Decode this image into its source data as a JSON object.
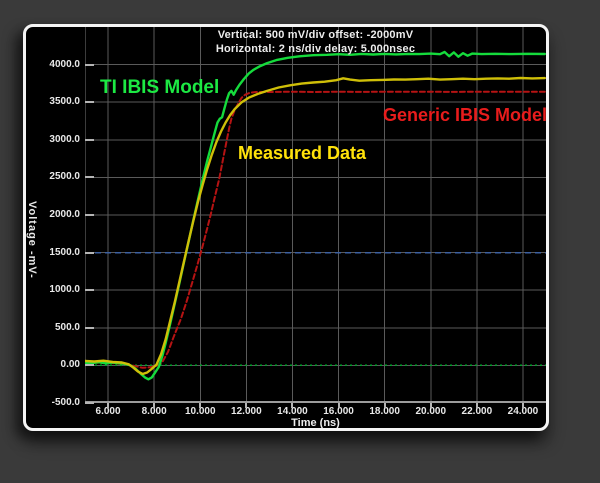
{
  "header": {
    "line1": "Vertical: 500 mV/div  offset: -2000mV",
    "line2": "Horizontal: 2 ns/div  delay: 5.000nsec"
  },
  "chart_data": {
    "type": "line",
    "title": "",
    "xlabel": "Time  (ns)",
    "ylabel": "Voltage -mV-",
    "xlim": [
      5,
      25
    ],
    "ylim": [
      -500,
      4500
    ],
    "grid": true,
    "x_ticks": [
      {
        "value": 6,
        "label": "6.000"
      },
      {
        "value": 8,
        "label": "8.000"
      },
      {
        "value": 10,
        "label": "10.000"
      },
      {
        "value": 12,
        "label": "12.000"
      },
      {
        "value": 14,
        "label": "14.000"
      },
      {
        "value": 16,
        "label": "16.000"
      },
      {
        "value": 18,
        "label": "18.000"
      },
      {
        "value": 20,
        "label": "20.000"
      },
      {
        "value": 22,
        "label": "22.000"
      },
      {
        "value": 24,
        "label": "24.000"
      }
    ],
    "y_ticks": [
      {
        "value": 4000,
        "label": "4000.0"
      },
      {
        "value": 3500,
        "label": "3500.0"
      },
      {
        "value": 3000,
        "label": "3000.0"
      },
      {
        "value": 2500,
        "label": "2500.0"
      },
      {
        "value": 2000,
        "label": "2000.0"
      },
      {
        "value": 1500,
        "label": "1500.0"
      },
      {
        "value": 1000,
        "label": "1000.0"
      },
      {
        "value": 500,
        "label": "500.0"
      },
      {
        "value": 0,
        "label": "0.00"
      },
      {
        "value": -500,
        "label": "-500.0"
      }
    ],
    "reference_lines": [
      {
        "name": "zero-level",
        "value": 0,
        "color": "#00a32b",
        "dash": "2,3"
      },
      {
        "name": "mid-level",
        "value": 1500,
        "color": "#3c5fa0",
        "dash": "6,4"
      }
    ],
    "colors": {
      "grid": "#5a5a5a",
      "axis": "#9c9c9c",
      "background": "#000000"
    },
    "series": [
      {
        "name": "TI IBIS Model",
        "color": "#15db3c",
        "label_color": "#1ce943",
        "dash": "",
        "points": [
          [
            5.0,
            35
          ],
          [
            5.3,
            30
          ],
          [
            5.6,
            42
          ],
          [
            5.9,
            28
          ],
          [
            6.2,
            38
          ],
          [
            6.5,
            28
          ],
          [
            6.8,
            18
          ],
          [
            7.0,
            -5
          ],
          [
            7.2,
            -45
          ],
          [
            7.4,
            -105
          ],
          [
            7.6,
            -160
          ],
          [
            7.75,
            -185
          ],
          [
            7.9,
            -160
          ],
          [
            8.05,
            -90
          ],
          [
            8.2,
            -20
          ],
          [
            8.35,
            120
          ],
          [
            8.5,
            300
          ],
          [
            8.7,
            560
          ],
          [
            8.9,
            830
          ],
          [
            9.1,
            1100
          ],
          [
            9.3,
            1380
          ],
          [
            9.5,
            1650
          ],
          [
            9.7,
            1930
          ],
          [
            9.9,
            2200
          ],
          [
            10.1,
            2470
          ],
          [
            10.3,
            2720
          ],
          [
            10.5,
            2950
          ],
          [
            10.65,
            3120
          ],
          [
            10.75,
            3230
          ],
          [
            10.85,
            3280
          ],
          [
            10.95,
            3300
          ],
          [
            11.05,
            3420
          ],
          [
            11.15,
            3530
          ],
          [
            11.25,
            3620
          ],
          [
            11.35,
            3650
          ],
          [
            11.45,
            3600
          ],
          [
            11.55,
            3660
          ],
          [
            11.7,
            3730
          ],
          [
            11.9,
            3810
          ],
          [
            12.1,
            3880
          ],
          [
            12.3,
            3930
          ],
          [
            12.6,
            3980
          ],
          [
            12.9,
            4020
          ],
          [
            13.3,
            4060
          ],
          [
            13.8,
            4090
          ],
          [
            14.3,
            4110
          ],
          [
            14.9,
            4125
          ],
          [
            15.5,
            4130
          ],
          [
            16.0,
            4138
          ],
          [
            16.5,
            4130
          ],
          [
            17.0,
            4142
          ],
          [
            17.5,
            4134
          ],
          [
            18.0,
            4142
          ],
          [
            18.5,
            4136
          ],
          [
            19.0,
            4142
          ],
          [
            19.5,
            4140
          ],
          [
            20.0,
            4146
          ],
          [
            20.4,
            4138
          ],
          [
            20.6,
            4168
          ],
          [
            20.8,
            4112
          ],
          [
            21.0,
            4162
          ],
          [
            21.2,
            4105
          ],
          [
            21.4,
            4152
          ],
          [
            21.6,
            4118
          ],
          [
            21.8,
            4146
          ],
          [
            22.2,
            4140
          ],
          [
            22.8,
            4144
          ],
          [
            23.5,
            4140
          ],
          [
            24.2,
            4143
          ],
          [
            24.95,
            4141
          ]
        ]
      },
      {
        "name": "Generic IBIS Model",
        "color": "#b51313",
        "label_color": "#e81c1c",
        "dash": "5,3",
        "points": [
          [
            5.0,
            40
          ],
          [
            5.6,
            35
          ],
          [
            6.2,
            30
          ],
          [
            6.8,
            15
          ],
          [
            7.2,
            -10
          ],
          [
            7.5,
            -32
          ],
          [
            7.8,
            -25
          ],
          [
            8.1,
            -5
          ],
          [
            8.35,
            40
          ],
          [
            8.6,
            180
          ],
          [
            8.85,
            380
          ],
          [
            9.16,
            620
          ],
          [
            9.4,
            840
          ],
          [
            9.64,
            1090
          ],
          [
            9.85,
            1310
          ],
          [
            10.07,
            1550
          ],
          [
            10.26,
            1770
          ],
          [
            10.45,
            2000
          ],
          [
            10.64,
            2250
          ],
          [
            10.82,
            2480
          ],
          [
            11.0,
            2760
          ],
          [
            11.12,
            2950
          ],
          [
            11.25,
            3150
          ],
          [
            11.35,
            3280
          ],
          [
            11.5,
            3400
          ],
          [
            11.66,
            3490
          ],
          [
            11.8,
            3560
          ],
          [
            11.95,
            3600
          ],
          [
            12.15,
            3625
          ],
          [
            12.4,
            3635
          ],
          [
            13.0,
            3635
          ],
          [
            14.0,
            3640
          ],
          [
            15.0,
            3636
          ],
          [
            16.0,
            3640
          ],
          [
            17.0,
            3637
          ],
          [
            18.0,
            3640
          ],
          [
            19.0,
            3638
          ],
          [
            20.0,
            3640
          ],
          [
            21.0,
            3637
          ],
          [
            22.0,
            3640
          ],
          [
            23.0,
            3638
          ],
          [
            24.0,
            3640
          ],
          [
            24.95,
            3638
          ]
        ]
      },
      {
        "name": "Measured Data",
        "color": "#cfbf08",
        "label_color": "#ffe20a",
        "dash": "",
        "points": [
          [
            5.0,
            60
          ],
          [
            5.4,
            52
          ],
          [
            5.8,
            62
          ],
          [
            6.2,
            45
          ],
          [
            6.6,
            38
          ],
          [
            6.9,
            15
          ],
          [
            7.1,
            -30
          ],
          [
            7.3,
            -82
          ],
          [
            7.5,
            -115
          ],
          [
            7.7,
            -95
          ],
          [
            7.9,
            -45
          ],
          [
            8.1,
            10
          ],
          [
            8.3,
            150
          ],
          [
            8.5,
            350
          ],
          [
            8.7,
            600
          ],
          [
            8.9,
            850
          ],
          [
            9.1,
            1120
          ],
          [
            9.3,
            1390
          ],
          [
            9.5,
            1660
          ],
          [
            9.7,
            1920
          ],
          [
            9.9,
            2170
          ],
          [
            10.1,
            2400
          ],
          [
            10.3,
            2610
          ],
          [
            10.5,
            2800
          ],
          [
            10.7,
            2970
          ],
          [
            10.9,
            3110
          ],
          [
            11.1,
            3230
          ],
          [
            11.3,
            3330
          ],
          [
            11.5,
            3410
          ],
          [
            11.8,
            3500
          ],
          [
            12.1,
            3560
          ],
          [
            12.5,
            3610
          ],
          [
            12.9,
            3650
          ],
          [
            13.4,
            3695
          ],
          [
            13.9,
            3725
          ],
          [
            14.4,
            3748
          ],
          [
            14.9,
            3762
          ],
          [
            15.4,
            3772
          ],
          [
            15.9,
            3792
          ],
          [
            16.2,
            3818
          ],
          [
            16.5,
            3800
          ],
          [
            16.9,
            3786
          ],
          [
            17.4,
            3792
          ],
          [
            17.9,
            3796
          ],
          [
            18.4,
            3802
          ],
          [
            18.9,
            3800
          ],
          [
            19.4,
            3806
          ],
          [
            19.9,
            3812
          ],
          [
            20.4,
            3800
          ],
          [
            20.9,
            3806
          ],
          [
            21.4,
            3812
          ],
          [
            21.9,
            3806
          ],
          [
            22.4,
            3812
          ],
          [
            22.9,
            3816
          ],
          [
            23.4,
            3812
          ],
          [
            23.9,
            3822
          ],
          [
            24.4,
            3816
          ],
          [
            24.95,
            3820
          ]
        ]
      }
    ]
  }
}
